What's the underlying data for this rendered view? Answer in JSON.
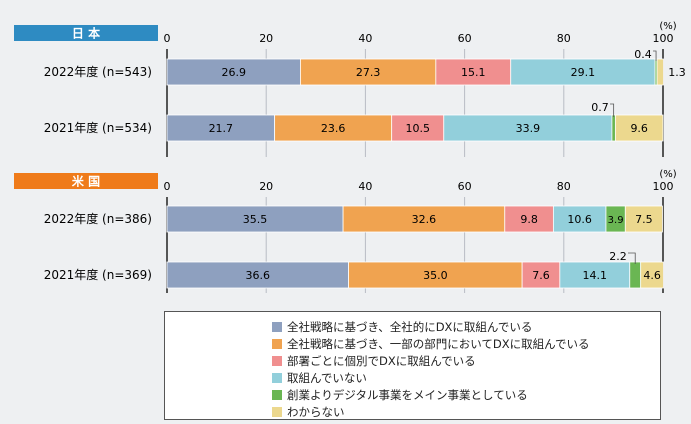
{
  "chart_data": [
    {
      "type": "bar",
      "orientation": "horizontal-stacked",
      "region": "日 本",
      "unit": "(%)",
      "xlim": [
        0,
        100
      ],
      "ticks": [
        "0",
        "20",
        "40",
        "60",
        "80",
        "100"
      ],
      "categories": [
        "2022年度 (n=543)",
        "2021年度 (n=534)"
      ],
      "series": [
        {
          "name": "全社戦略に基づき、全社的にDXに取組んでいる",
          "values": [
            26.9,
            21.7
          ]
        },
        {
          "name": "全社戦略に基づき、一部の部門においてDXに取組んでいる",
          "values": [
            27.3,
            23.6
          ]
        },
        {
          "name": "部署ごとに個別でDXに取組んでいる",
          "values": [
            15.1,
            10.5
          ]
        },
        {
          "name": "取組んでいない",
          "values": [
            29.1,
            33.9
          ]
        },
        {
          "name": "創業よりデジタル事業をメイン事業としている",
          "values": [
            0.4,
            0.7
          ]
        },
        {
          "name": "わからない",
          "values": [
            1.3,
            9.6
          ]
        }
      ]
    },
    {
      "type": "bar",
      "orientation": "horizontal-stacked",
      "region": "米 国",
      "unit": "(%)",
      "xlim": [
        0,
        100
      ],
      "ticks": [
        "0",
        "20",
        "40",
        "60",
        "80",
        "100"
      ],
      "categories": [
        "2022年度 (n=386)",
        "2021年度 (n=369)"
      ],
      "series": [
        {
          "name": "全社戦略に基づき、全社的にDXに取組んでいる",
          "values": [
            35.5,
            36.6
          ]
        },
        {
          "name": "全社戦略に基づき、一部の部門においてDXに取組んでいる",
          "values": [
            32.6,
            35.0
          ]
        },
        {
          "name": "部署ごとに個別でDXに取組んでいる",
          "values": [
            9.8,
            7.6
          ]
        },
        {
          "name": "取組んでいない",
          "values": [
            10.6,
            14.1
          ]
        },
        {
          "name": "創業よりデジタル事業をメイン事業としている",
          "values": [
            3.9,
            2.2
          ]
        },
        {
          "name": "わからない",
          "values": [
            7.5,
            4.6
          ]
        }
      ]
    }
  ],
  "legend": [
    {
      "label": "全社戦略に基づき、全社的にDXに取組んでいる",
      "color": "#8ea0bf"
    },
    {
      "label": "全社戦略に基づき、一部の部門においてDXに取組んでいる",
      "color": "#f0a350"
    },
    {
      "label": "部署ごとに個別でDXに取組んでいる",
      "color": "#f08f8f"
    },
    {
      "label": "取組んでいない",
      "color": "#92cfdb"
    },
    {
      "label": "創業よりデジタル事業をメイン事業としている",
      "color": "#6ab653"
    },
    {
      "label": "わからない",
      "color": "#ecd88e"
    }
  ],
  "colors": {
    "japan_tag": "#2e8bc2",
    "us_tag": "#ef7b1a"
  }
}
